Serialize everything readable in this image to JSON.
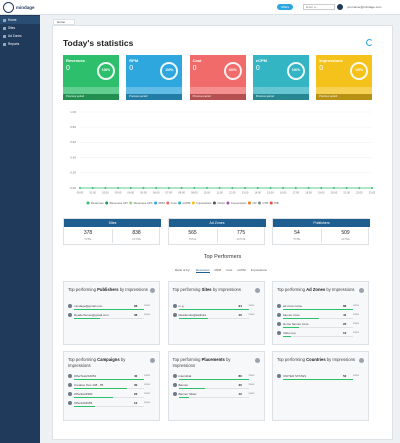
{
  "header": {
    "logo": "mindage",
    "button": "Offers",
    "search": "Enter a...",
    "user": "yourname@mindage.com"
  },
  "sidebar": {
    "items": [
      "Home",
      "Sites",
      "Ad Zones",
      "Reports"
    ]
  },
  "breadcrumb": "Home",
  "title": "Today's statistics",
  "stat_cards": [
    {
      "label": "Revenues",
      "value": 0,
      "percent": "100%",
      "footer": "Previous period",
      "color": "#2ebf6d"
    },
    {
      "label": "RPM",
      "value": 0,
      "percent": "100%",
      "footer": "Previous period",
      "color": "#2ea7de"
    },
    {
      "label": "Cost",
      "value": 0,
      "percent": "100%",
      "footer": "Previous period",
      "color": "#f26b6b"
    },
    {
      "label": "eCPM",
      "value": 0,
      "percent": "100%",
      "footer": "Previous period",
      "color": "#33b5c4"
    },
    {
      "label": "Impressions",
      "value": 0,
      "percent": "100%",
      "footer": "Previous period",
      "color": "#f5c21b"
    }
  ],
  "chart": {
    "type": "line",
    "ylim": [
      0,
      1
    ],
    "yticks": [
      {
        "value": 0,
        "label": "0.00"
      },
      {
        "value": 0.2,
        "label": "0.20"
      },
      {
        "value": 0.4,
        "label": "0.40"
      },
      {
        "value": 0.6,
        "label": "0.60"
      },
      {
        "value": 0.8,
        "label": "0.80"
      },
      {
        "value": 1,
        "label": "1.00"
      }
    ],
    "categories": [
      "00:00",
      "01:00",
      "02:00",
      "03:00",
      "04:00",
      "05:00",
      "06:00",
      "07:00",
      "08:00",
      "09:00",
      "10:00",
      "11:00",
      "12:00",
      "13:00",
      "14:00",
      "15:00",
      "16:00",
      "17:00",
      "18:00",
      "19:00",
      "20:00",
      "21:00",
      "22:00",
      "23:00"
    ],
    "series": [
      {
        "name": "Revenues",
        "color": "#2ebf6d",
        "values": [
          0,
          0,
          0,
          0,
          0,
          0,
          0,
          0,
          0,
          0,
          0,
          0,
          0,
          0,
          0,
          0,
          0,
          0,
          0,
          0,
          0,
          0,
          0,
          0
        ]
      },
      {
        "name": "Revenues CPI",
        "color": "#1f9d55"
      },
      {
        "name": "Revenues CPA",
        "color": "#9bd77a"
      },
      {
        "name": "RPM",
        "color": "#2ea7de"
      },
      {
        "name": "Cost",
        "color": "#f26b6b"
      },
      {
        "name": "eCPM",
        "color": "#33b5c4"
      },
      {
        "name": "Impressions",
        "color": "#f5c21b"
      },
      {
        "name": "Clicks",
        "color": "#555555"
      },
      {
        "name": "Conversions",
        "color": "#9b59b6"
      },
      {
        "name": "CR",
        "color": "#e67e22"
      },
      {
        "name": "CTR",
        "color": "#7f8c8d"
      },
      {
        "name": "PIB",
        "color": "#e74c3c"
      }
    ]
  },
  "summary": [
    {
      "title": "Sites",
      "items": [
        {
          "value": 378,
          "label": "TOTAL"
        },
        {
          "value": 838,
          "label": "ACTIVE"
        }
      ]
    },
    {
      "title": "Ad Zones",
      "items": [
        {
          "value": 565,
          "label": "TOTAL"
        },
        {
          "value": 775,
          "label": "ACTIVE"
        }
      ]
    },
    {
      "title": "Publishers",
      "items": [
        {
          "value": 54,
          "label": "TOTAL"
        },
        {
          "value": 509,
          "label": "ACTIVE"
        }
      ]
    }
  ],
  "top": {
    "title": "Top Performers",
    "rank_label": "Rank of by:",
    "tabs": [
      "Revenues",
      "RPM",
      "Cost",
      "eCPM",
      "Impressions"
    ],
    "cards": [
      {
        "pre": "Top performing",
        "bold": "Publishers",
        "post": "by Impressions",
        "unit": "views",
        "rows": [
          {
            "name": "mindage@gmail.com",
            "value": 96
          },
          {
            "name": "Readerhouse@gmail.com",
            "value": 36
          }
        ]
      },
      {
        "pre": "Top performing",
        "bold": "Sites",
        "post": "by Impressions",
        "unit": "views",
        "rows": [
          {
            "name": "m.g",
            "value": 94
          },
          {
            "name": "Readersite@kallistra",
            "value": 40
          }
        ]
      },
      {
        "pre": "Top performing",
        "bold": "Ad Zones",
        "post": "by Impressions",
        "unit": "views",
        "rows": [
          {
            "name": "ad zone name",
            "value": 86
          },
          {
            "name": "banner zone",
            "value": 44
          },
          {
            "name": "Home banner zone",
            "value": 20
          },
          {
            "name": "Video top",
            "value": 10
          }
        ]
      },
      {
        "pre": "Top performing",
        "bold": "Campaigns",
        "post": "by Impressions",
        "unit": "views",
        "rows": [
          {
            "name": "OfferTest234054",
            "value": 40
          },
          {
            "name": "Creative Test 108 - 85",
            "value": 30
          },
          {
            "name": "OfferEx24983",
            "value": 22
          },
          {
            "name": "Offer4491556",
            "value": 12
          }
        ]
      },
      {
        "pre": "Top performing",
        "bold": "Placements",
        "post": "by Impressions",
        "unit": "views",
        "rows": [
          {
            "name": "interstitial",
            "value": 80
          },
          {
            "name": "Banner",
            "value": 30
          },
          {
            "name": "Banner Slider",
            "value": 12
          }
        ]
      },
      {
        "pre": "Top performing",
        "bold": "Countries",
        "post": "by Impressions",
        "unit": "views",
        "rows": [
          {
            "name": "UNITED STATES",
            "value": 52
          }
        ]
      }
    ]
  }
}
